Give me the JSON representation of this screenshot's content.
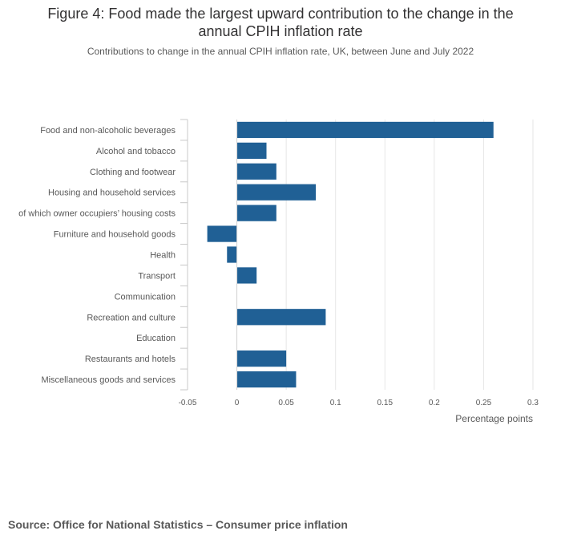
{
  "title_line1": "Figure 4: Food made the largest upward contribution to the change in the",
  "title_line2": "annual CPIH inflation rate",
  "subtitle": "Contributions to change in the annual CPIH inflation rate, UK, between June and July 2022",
  "source": "Source: Office for National Statistics – Consumer price inflation",
  "colors": {
    "bar": "#206095",
    "grid": "#e6e6e6",
    "axis": "#c8c8c8",
    "text": "#595959"
  },
  "chart_data": {
    "type": "bar",
    "orientation": "horizontal",
    "categories": [
      "Food and non-alcoholic beverages",
      "Alcohol and tobacco",
      "Clothing and footwear",
      "Housing and household services",
      "of which owner occupiers’ housing costs",
      "Furniture and household goods",
      "Health",
      "Transport",
      "Communication",
      "Recreation and culture",
      "Education",
      "Restaurants and hotels",
      "Miscellaneous goods and services"
    ],
    "values": [
      0.26,
      0.03,
      0.04,
      0.08,
      0.04,
      -0.03,
      -0.01,
      0.02,
      0,
      0.09,
      0,
      0.05,
      0.06
    ],
    "xlim": [
      -0.05,
      0.3
    ],
    "xticks": [
      -0.05,
      0,
      0.05,
      0.1,
      0.15,
      0.2,
      0.25,
      0.3
    ],
    "xtick_labels": [
      "-0.05",
      "0",
      "0.05",
      "0.1",
      "0.15",
      "0.2",
      "0.25",
      "0.3"
    ],
    "xlabel": "Percentage points",
    "grid": true
  }
}
